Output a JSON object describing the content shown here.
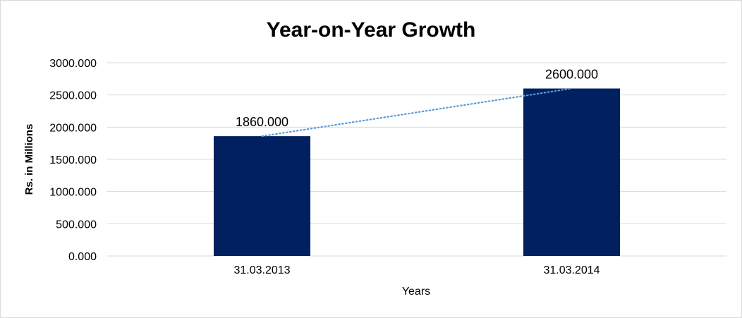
{
  "chart_data": {
    "type": "bar",
    "title": "Year-on-Year Growth",
    "xlabel": "Years",
    "ylabel": "Rs. in Millions",
    "categories": [
      "31.03.2013",
      "31.03.2014"
    ],
    "values": [
      1860,
      2600
    ],
    "data_labels": [
      "1860.000",
      "2600.000"
    ],
    "ylim": [
      0,
      3000
    ],
    "yticks": [
      0,
      500,
      1000,
      1500,
      2000,
      2500,
      3000
    ],
    "ytick_labels": [
      "0.000",
      "500.000",
      "1000.000",
      "1500.000",
      "2000.000",
      "2500.000",
      "3000.000"
    ],
    "grid": true,
    "legend": "none",
    "trendline": "linear, dotted",
    "colors": {
      "bar": "#002060",
      "trendline": "#5b9bd5",
      "grid": "#d9d9d9"
    }
  }
}
